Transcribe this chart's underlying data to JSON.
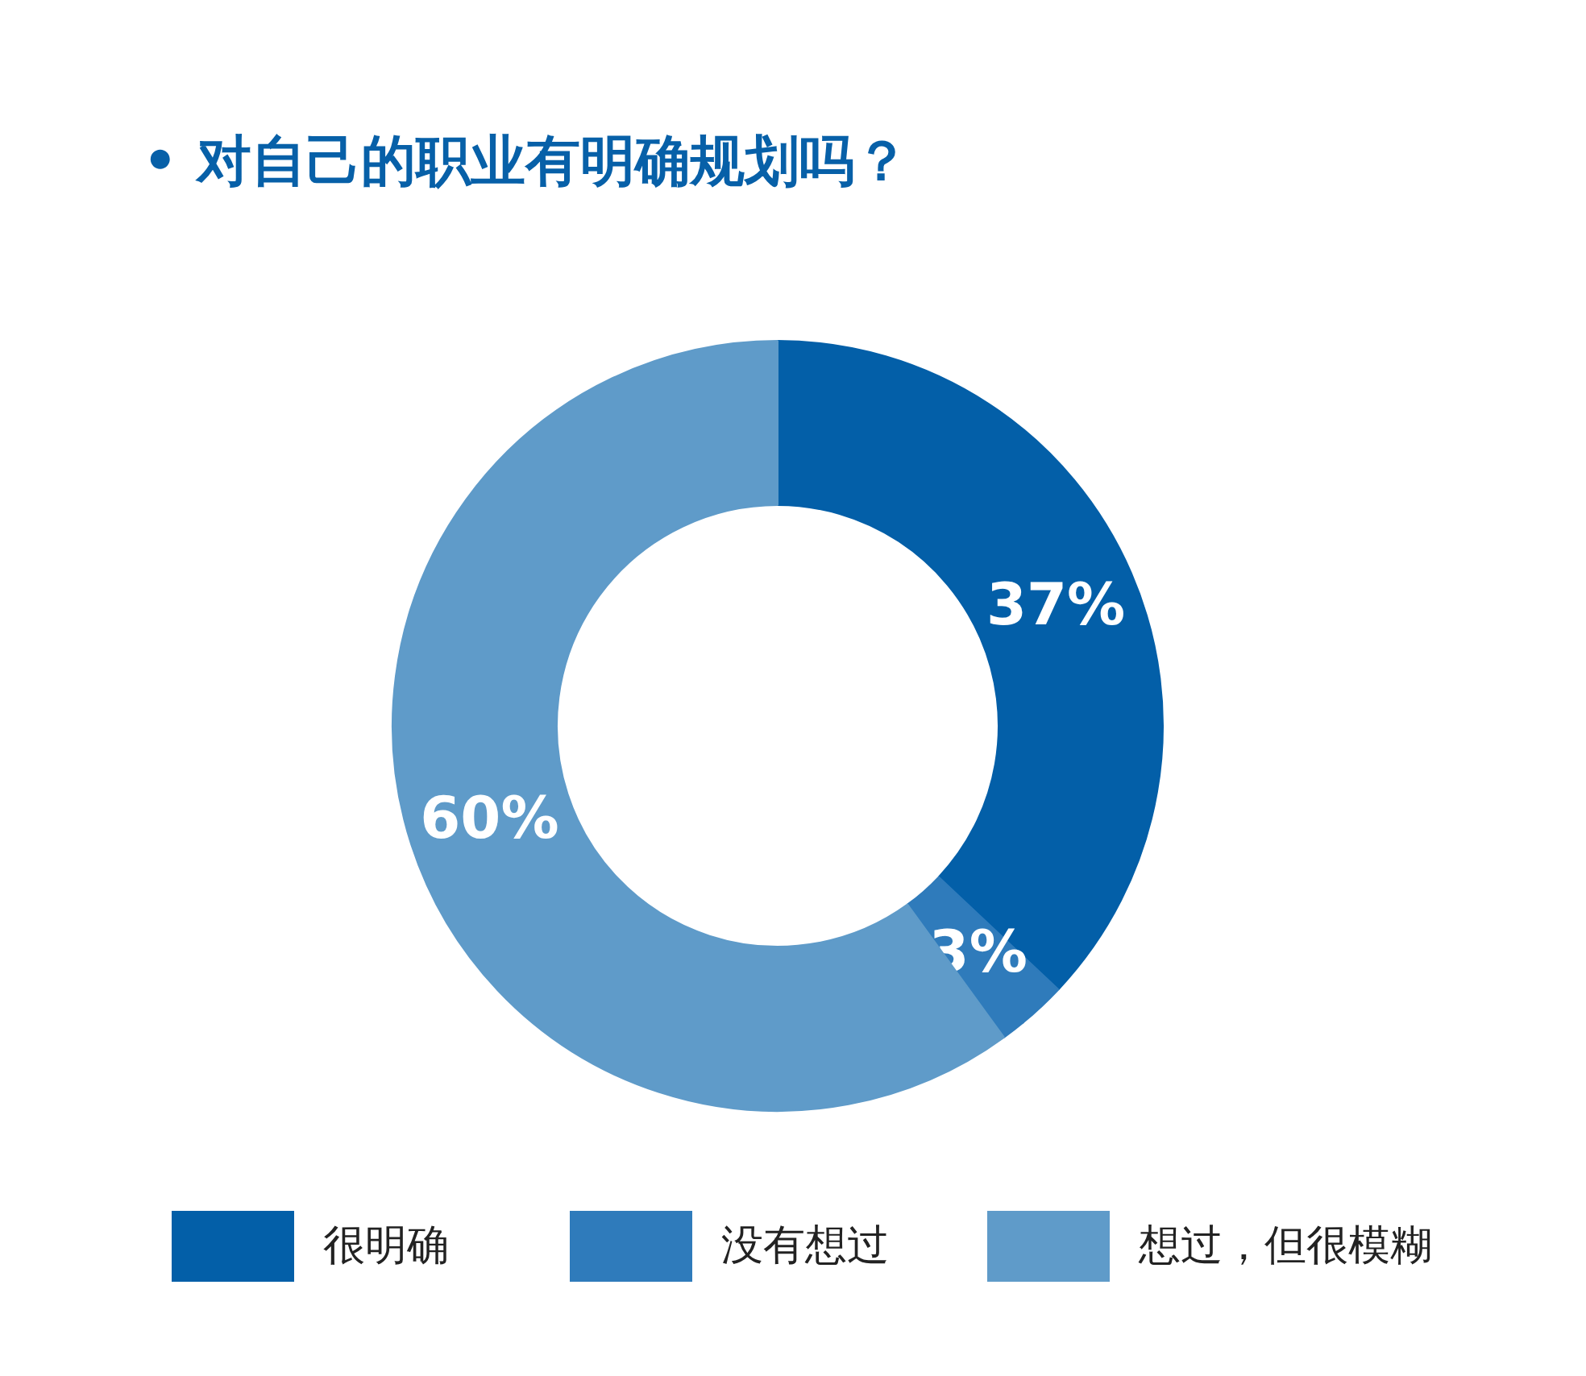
{
  "chart_data": {
    "type": "donut",
    "title": "• 对自己的职业有明确规划吗？",
    "categories": [
      "很明确",
      "没有想过",
      "想过，但很模糊"
    ],
    "values": [
      37,
      3,
      60
    ],
    "value_labels": [
      "37%",
      "3%",
      "60%"
    ],
    "colors": [
      "#035fa8",
      "#2f7bbb",
      "#5f9bc9"
    ],
    "legend": "bottom"
  }
}
